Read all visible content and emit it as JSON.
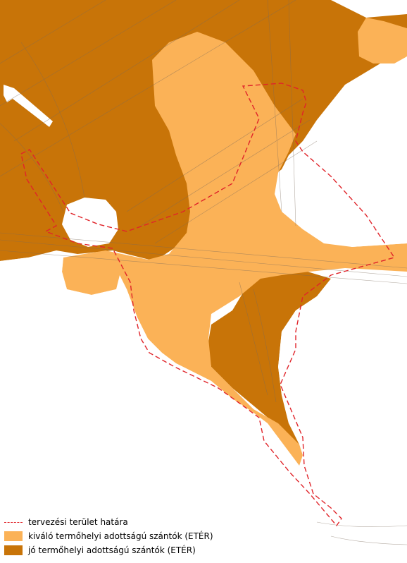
{
  "colors": {
    "good_soil": "#c87408",
    "excellent_soil": "#fbb257",
    "boundary": "#e0242a",
    "lines": "#8a7a6a",
    "white": "#ffffff"
  },
  "legend": {
    "items": [
      {
        "symbol": "dashed-red-line",
        "label": "tervezési terület határa"
      },
      {
        "symbol": "light-orange-swatch",
        "label": "kiváló termőhelyi adottságú szántók (ETÉR)"
      },
      {
        "symbol": "dark-orange-swatch",
        "label": "jó termőhelyi adottságú szántók (ETÉR)"
      }
    ]
  }
}
